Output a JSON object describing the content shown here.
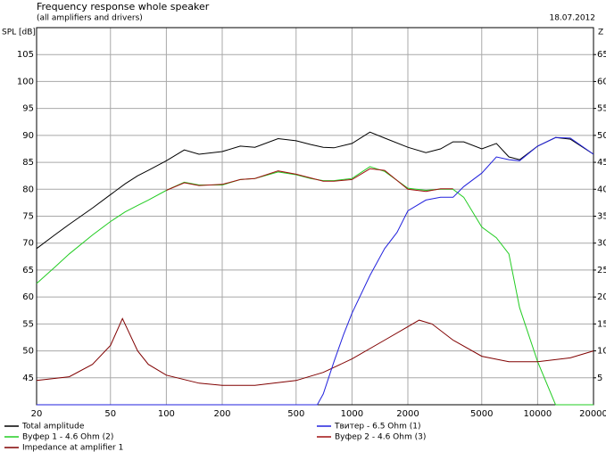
{
  "chart_data": {
    "type": "line",
    "title": "Frequency response whole speaker",
    "subtitle": "(all amplifiers and drivers)",
    "date": "18.07.2012",
    "ylabel": "SPL [dB]",
    "y2label": "Z",
    "log_x": true,
    "grid": true,
    "xlim": [
      20,
      20000
    ],
    "xticks": [
      20,
      50,
      100,
      200,
      500,
      1000,
      2000,
      5000,
      10000,
      20000
    ],
    "ylim": [
      40,
      110
    ],
    "yticks": [
      45,
      50,
      55,
      60,
      65,
      70,
      75,
      80,
      85,
      90,
      95,
      100,
      105
    ],
    "y2lim": [
      0,
      70
    ],
    "y2ticks": [
      5,
      10,
      15,
      20,
      25,
      30,
      35,
      40,
      45,
      50,
      55,
      60,
      65
    ],
    "series": [
      {
        "name": "Total amplitude",
        "color": "#000000",
        "x": [
          20,
          25,
          30,
          40,
          50,
          60,
          70,
          80,
          100,
          125,
          150,
          200,
          250,
          300,
          400,
          500,
          600,
          700,
          800,
          1000,
          1250,
          1500,
          2000,
          2500,
          3000,
          3500,
          4000,
          5000,
          6000,
          7000,
          8000,
          10000,
          12500,
          15000,
          20000
        ],
        "values": [
          69,
          71.5,
          73.5,
          76.5,
          79,
          81,
          82.5,
          83.5,
          85.3,
          87.3,
          86.5,
          87,
          88,
          87.8,
          89.4,
          89,
          88.3,
          87.8,
          87.7,
          88.5,
          90.6,
          89.5,
          87.8,
          86.8,
          87.5,
          88.8,
          88.8,
          87.5,
          88.5,
          86,
          85.5,
          88,
          89.6,
          89.3,
          86.5
        ]
      },
      {
        "name": "Вуфер 1 - 4.6 Ohm (2)",
        "color": "#22cc22",
        "x": [
          20,
          25,
          30,
          40,
          50,
          60,
          70,
          80,
          100,
          125,
          150,
          200,
          250,
          300,
          400,
          500,
          600,
          700,
          800,
          1000,
          1250,
          1500,
          2000,
          2500,
          3000,
          3500,
          4000,
          5000,
          6000,
          7000,
          8000,
          10000,
          12500,
          15000,
          20000
        ],
        "values": [
          62.5,
          65.5,
          68,
          71.5,
          74,
          75.8,
          77,
          78,
          79.8,
          81.3,
          80.8,
          80.8,
          81.8,
          82,
          83.2,
          82.7,
          82,
          81.6,
          81.6,
          82,
          84.2,
          83.3,
          80.2,
          79.8,
          80,
          80,
          78.5,
          73,
          71,
          68,
          58,
          48,
          40,
          40,
          40
        ]
      },
      {
        "name": "Impedance at amplifier 1",
        "color": "#800000",
        "axis": "y2",
        "x": [
          20,
          30,
          40,
          50,
          58,
          70,
          80,
          100,
          150,
          200,
          300,
          500,
          700,
          1000,
          1500,
          2000,
          2300,
          2700,
          3500,
          5000,
          7000,
          10000,
          15000,
          20000
        ],
        "values": [
          4.5,
          5.2,
          7.5,
          11,
          16,
          10,
          7.5,
          5.5,
          4,
          3.6,
          3.6,
          4.5,
          6,
          8.5,
          12,
          14.5,
          15.7,
          15,
          12,
          9,
          8,
          8,
          8.7,
          10
        ]
      },
      {
        "name": "Твитер - 6.5 Ohm (1)",
        "color": "#2222dd",
        "x": [
          20,
          600,
          650,
          700,
          800,
          900,
          1000,
          1250,
          1500,
          1750,
          2000,
          2500,
          3000,
          3500,
          4000,
          5000,
          6000,
          7000,
          8000,
          10000,
          12500,
          15000,
          20000
        ],
        "values": [
          40,
          40,
          40,
          42,
          48,
          53,
          57,
          64,
          69,
          72,
          76,
          78,
          78.5,
          78.5,
          80.5,
          83,
          86,
          85.5,
          85.3,
          88,
          89.6,
          89.5,
          86.5
        ]
      },
      {
        "name": "Вуфер 2 - 4.6 Ohm (3)",
        "color": "#a01010",
        "x": [
          100,
          125,
          150,
          200,
          250,
          300,
          400,
          500,
          600,
          700,
          800,
          1000,
          1250,
          1500,
          2000,
          2500,
          3000,
          3500
        ],
        "values": [
          79.8,
          81.2,
          80.7,
          80.9,
          81.8,
          82,
          83.4,
          82.8,
          82.1,
          81.5,
          81.5,
          81.8,
          83.8,
          83.5,
          80,
          79.6,
          80.1,
          80.1
        ]
      }
    ]
  }
}
